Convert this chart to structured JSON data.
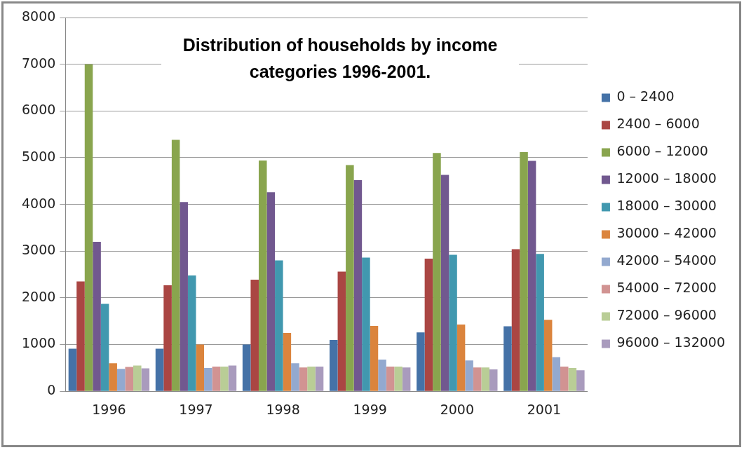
{
  "chart_data": {
    "type": "bar",
    "title": "Distribution of households by income categories 1996-2001.",
    "categories": [
      "1996",
      "1997",
      "1998",
      "1999",
      "2000",
      "2001"
    ],
    "series": [
      {
        "name": "0 – 2400",
        "color": "#4572a7",
        "values": [
          910,
          910,
          1000,
          1100,
          1260,
          1390
        ]
      },
      {
        "name": "2400 – 6000",
        "color": "#aa4643",
        "values": [
          2350,
          2270,
          2390,
          2560,
          2840,
          3040
        ]
      },
      {
        "name": "6000 – 12000",
        "color": "#89a54e",
        "values": [
          7000,
          5380,
          4940,
          4840,
          5100,
          5120
        ]
      },
      {
        "name": "12000 – 18000",
        "color": "#71588f",
        "values": [
          3200,
          4050,
          4260,
          4520,
          4630,
          4930
        ]
      },
      {
        "name": "18000 – 30000",
        "color": "#4198af",
        "values": [
          1870,
          2480,
          2800,
          2860,
          2920,
          2940
        ]
      },
      {
        "name": "30000 – 42000",
        "color": "#db843d",
        "values": [
          600,
          1000,
          1250,
          1400,
          1430,
          1530
        ]
      },
      {
        "name": "42000 – 54000",
        "color": "#93a9cf",
        "values": [
          480,
          500,
          600,
          680,
          660,
          730
        ]
      },
      {
        "name": "54000 – 72000",
        "color": "#d19392",
        "values": [
          520,
          530,
          510,
          530,
          510,
          530
        ]
      },
      {
        "name": "72000 – 96000",
        "color": "#b9cd96",
        "values": [
          550,
          530,
          530,
          530,
          510,
          500
        ]
      },
      {
        "name": "96000 – 132000",
        "color": "#a99bbd",
        "values": [
          490,
          550,
          530,
          510,
          470,
          450
        ]
      }
    ],
    "ylim": [
      0,
      8000
    ],
    "yticks": [
      0,
      1000,
      2000,
      3000,
      4000,
      5000,
      6000,
      7000,
      8000
    ],
    "grid": "y",
    "legend": "right"
  }
}
